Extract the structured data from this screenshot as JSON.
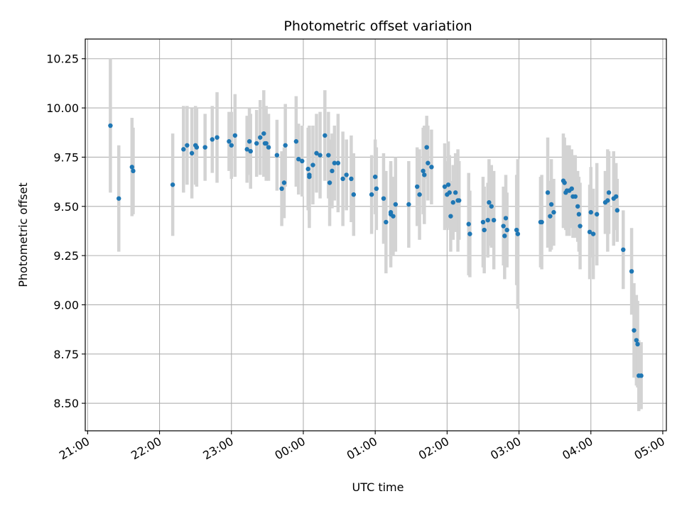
{
  "chart_data": {
    "type": "scatter",
    "title": "Photometric offset variation",
    "xlabel": "UTC time",
    "ylabel": "Photometric offset",
    "x_ticks": [
      "21:00",
      "22:00",
      "23:00",
      "00:00",
      "01:00",
      "02:00",
      "03:00",
      "04:00",
      "05:00"
    ],
    "y_ticks": [
      "8.50",
      "8.75",
      "9.00",
      "9.25",
      "9.50",
      "9.75",
      "10.00",
      "10.25"
    ],
    "xlim": [
      "20:58",
      "05:03"
    ],
    "ylim": [
      8.36,
      10.35
    ],
    "grid": true,
    "colors": {
      "point": "#1f77b4",
      "errorbar": "#d3d3d3",
      "grid": "#b0b0b0"
    },
    "series": [
      {
        "x": [
          "21:19",
          "21:26",
          "21:37",
          "21:38",
          "22:11",
          "22:20",
          "22:23",
          "22:27",
          "22:30",
          "22:31",
          "22:38",
          "22:44",
          "22:48",
          "22:58",
          "23:00",
          "23:03",
          "23:13",
          "23:15",
          "23:16",
          "23:21",
          "23:24",
          "23:27",
          "23:28",
          "23:29",
          "23:31",
          "23:38",
          "23:42",
          "23:44",
          "23:45",
          "23:54",
          "23:56",
          "23:59",
          "00:04",
          "00:05",
          "00:05",
          "00:08",
          "00:11",
          "00:14",
          "00:18",
          "00:21",
          "00:22",
          "00:24",
          "00:26",
          "00:29",
          "00:33",
          "00:36",
          "00:40",
          "00:42",
          "00:57",
          "01:00",
          "01:01",
          "01:07",
          "01:09",
          "01:13",
          "01:13",
          "01:15",
          "01:17",
          "01:28",
          "01:35",
          "01:37",
          "01:40",
          "01:41",
          "01:43",
          "01:44",
          "01:47",
          "01:58",
          "02:00",
          "02:01",
          "02:02",
          "02:03",
          "02:05",
          "02:07",
          "02:09",
          "02:10",
          "02:18",
          "02:19",
          "02:30",
          "02:31",
          "02:34",
          "02:35",
          "02:37",
          "02:39",
          "02:47",
          "02:48",
          "02:49",
          "02:50",
          "02:58",
          "02:59",
          "03:18",
          "03:19",
          "03:24",
          "03:26",
          "03:27",
          "03:29",
          "03:37",
          "03:38",
          "03:39",
          "03:40",
          "03:42",
          "03:44",
          "03:45",
          "03:47",
          "03:49",
          "03:50",
          "03:51",
          "03:59",
          "04:00",
          "04:02",
          "04:05",
          "04:12",
          "04:14",
          "04:15",
          "04:19",
          "04:21",
          "04:22",
          "04:27",
          "04:34",
          "04:36",
          "04:38",
          "04:39",
          "04:40",
          "04:42"
        ],
        "y": [
          9.91,
          9.54,
          9.7,
          9.68,
          9.61,
          9.79,
          9.81,
          9.77,
          9.81,
          9.8,
          9.8,
          9.84,
          9.85,
          9.83,
          9.81,
          9.86,
          9.79,
          9.83,
          9.78,
          9.82,
          9.85,
          9.87,
          9.82,
          9.82,
          9.8,
          9.76,
          9.59,
          9.62,
          9.81,
          9.83,
          9.74,
          9.73,
          9.69,
          9.65,
          9.66,
          9.71,
          9.77,
          9.76,
          9.86,
          9.76,
          9.62,
          9.68,
          9.72,
          9.72,
          9.64,
          9.66,
          9.64,
          9.56,
          9.56,
          9.65,
          9.59,
          9.54,
          9.42,
          9.47,
          9.46,
          9.45,
          9.51,
          9.51,
          9.6,
          9.56,
          9.68,
          9.66,
          9.8,
          9.72,
          9.7,
          9.6,
          9.56,
          9.61,
          9.57,
          9.45,
          9.52,
          9.57,
          9.53,
          9.53,
          9.41,
          9.36,
          9.42,
          9.38,
          9.43,
          9.52,
          9.5,
          9.43,
          9.4,
          9.35,
          9.44,
          9.38,
          9.38,
          9.36,
          9.42,
          9.42,
          9.57,
          9.45,
          9.51,
          9.47,
          9.63,
          9.62,
          9.57,
          9.58,
          9.58,
          9.59,
          9.55,
          9.55,
          9.5,
          9.46,
          9.4,
          9.37,
          9.47,
          9.36,
          9.46,
          9.52,
          9.53,
          9.57,
          9.54,
          9.55,
          9.48,
          9.28,
          9.17,
          8.87,
          8.82,
          8.8,
          8.64,
          8.64
        ],
        "yerr": [
          0.34,
          0.27,
          0.25,
          0.22,
          0.26,
          0.22,
          0.2,
          0.23,
          0.2,
          0.2,
          0.17,
          0.17,
          0.23,
          0.15,
          0.17,
          0.21,
          0.17,
          0.17,
          0.19,
          0.17,
          0.19,
          0.22,
          0.16,
          0.19,
          0.17,
          0.18,
          0.19,
          0.18,
          0.21,
          0.23,
          0.18,
          0.18,
          0.21,
          0.26,
          0.23,
          0.2,
          0.2,
          0.22,
          0.23,
          0.22,
          0.22,
          0.19,
          0.19,
          0.25,
          0.24,
          0.18,
          0.22,
          0.21,
          0.2,
          0.19,
          0.21,
          0.23,
          0.26,
          0.24,
          0.27,
          0.2,
          0.24,
          0.22,
          0.2,
          0.23,
          0.22,
          0.25,
          0.16,
          0.19,
          0.19,
          0.22,
          0.17,
          0.22,
          0.19,
          0.18,
          0.19,
          0.2,
          0.26,
          0.2,
          0.26,
          0.22,
          0.23,
          0.22,
          0.19,
          0.22,
          0.21,
          0.25,
          0.2,
          0.22,
          0.22,
          0.19,
          0.28,
          0.38,
          0.23,
          0.24,
          0.28,
          0.18,
          0.23,
          0.17,
          0.24,
          0.23,
          0.19,
          0.23,
          0.23,
          0.2,
          0.21,
          0.21,
          0.18,
          0.19,
          0.22,
          0.24,
          0.23,
          0.23,
          0.26,
          0.16,
          0.26,
          0.21,
          0.24,
          0.17,
          0.16,
          0.2,
          0.22,
          0.24,
          0.23,
          0.22,
          0.18,
          0.17
        ]
      }
    ]
  }
}
